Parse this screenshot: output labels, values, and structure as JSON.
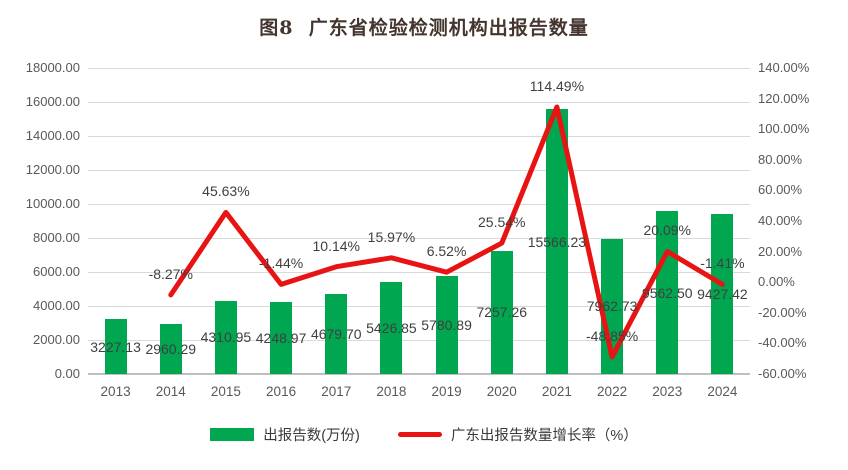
{
  "title": "图8  广东省检验检测机构出报告数量",
  "legend": {
    "items": [
      {
        "label": "出报告数(万份)",
        "color": "#00a650",
        "swatch": "bar-swatch"
      },
      {
        "label": "广东出报告数量增长率（%）",
        "color": "#e81313",
        "swatch": "line-swatch"
      }
    ]
  },
  "colors": {
    "bar": "#00a650",
    "line": "#e81313",
    "gridline": "#d9d9d9",
    "axis_line": "#bfbfbf",
    "axis_text": "#595959",
    "data_label": "#3f3f3f",
    "title_text": "#44362e"
  },
  "chart_data": {
    "type": "combo-bar-line",
    "title": "图8  广东省检验检测机构出报告数量",
    "categories": [
      "2013",
      "2014",
      "2015",
      "2016",
      "2017",
      "2018",
      "2019",
      "2020",
      "2021",
      "2022",
      "2023",
      "2024"
    ],
    "series": [
      {
        "name": "出报告数(万份)",
        "type": "bar",
        "axis": "left",
        "color": "#00a650",
        "values": [
          3227.13,
          2960.29,
          4310.95,
          4248.97,
          4679.7,
          5426.85,
          5780.89,
          7257.26,
          15566.23,
          7962.73,
          9562.5,
          9427.42
        ],
        "labels": [
          "3227.13",
          "2960.29",
          "4310.95",
          "4248.97",
          "4679.70",
          "5426.85",
          "5780.89",
          "7257.26",
          "15566.23",
          "7962.73",
          "9562.50",
          "9427.42"
        ]
      },
      {
        "name": "广东出报告数量增长率（%）",
        "type": "line",
        "axis": "right",
        "color": "#e81313",
        "values": [
          null,
          -8.27,
          45.63,
          -1.44,
          10.14,
          15.97,
          6.52,
          25.54,
          114.49,
          -48.85,
          20.09,
          -1.41
        ],
        "labels": [
          null,
          "-8.27%",
          "45.63%",
          "-1.44%",
          "10.14%",
          "15.97%",
          "6.52%",
          "25.54%",
          "114.49%",
          "-48.85%",
          "20.09%",
          "-1.41%"
        ]
      }
    ],
    "left_axis": {
      "min": 0,
      "max": 18000,
      "step": 2000,
      "tick_labels": [
        "0.00",
        "2000.00",
        "4000.00",
        "6000.00",
        "8000.00",
        "10000.00",
        "12000.00",
        "14000.00",
        "16000.00",
        "18000.00"
      ]
    },
    "right_axis": {
      "min": -60,
      "max": 140,
      "step": 20,
      "tick_labels": [
        "-60.00%",
        "-40.00%",
        "-20.00%",
        "0.00%",
        "20.00%",
        "40.00%",
        "60.00%",
        "80.00%",
        "100.00%",
        "120.00%",
        "140.00%"
      ]
    },
    "grid": "horizontal",
    "legend_position": "bottom"
  }
}
